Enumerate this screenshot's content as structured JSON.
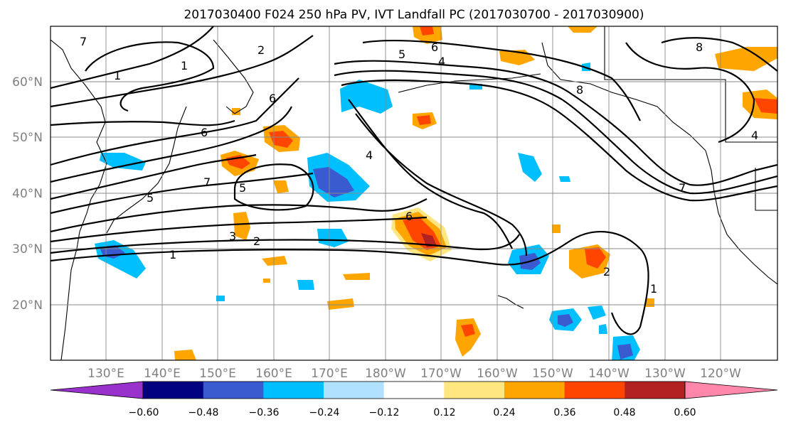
{
  "title": "2017030400 F024 250 hPa PV, IVT Landfall PC (2017030700 - 2017030900)",
  "map": {
    "lat_labels": [
      "60°N",
      "50°N",
      "40°N",
      "30°N",
      "20°N"
    ],
    "lon_labels": [
      "130°E",
      "140°E",
      "150°E",
      "160°E",
      "170°E",
      "180°W",
      "170°W",
      "160°W",
      "150°W",
      "140°W",
      "130°W",
      "120°W"
    ],
    "pv_contour_labels": [
      "1",
      "2",
      "3",
      "4",
      "5",
      "6",
      "7",
      "8"
    ]
  },
  "colorbar": {
    "ticks": [
      "−0.60",
      "−0.48",
      "−0.36",
      "−0.24",
      "−0.12",
      "0.12",
      "0.24",
      "0.36",
      "0.48",
      "0.60"
    ],
    "colors": [
      "#9932cc",
      "#000080",
      "#3a5bd0",
      "#00bfff",
      "#b0e2ff",
      "#ffffff",
      "#ffe680",
      "#ffa500",
      "#ff4500",
      "#b22222",
      "#ff88aa"
    ]
  },
  "colors": {
    "grid": "#8a8a8a",
    "tick_text": "#808080"
  }
}
